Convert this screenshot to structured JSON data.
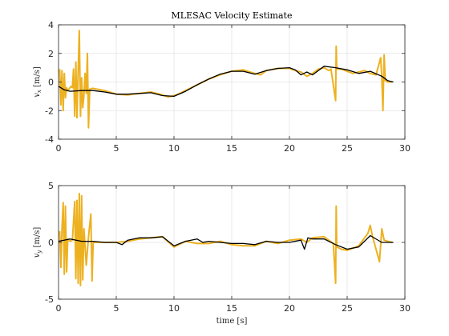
{
  "chart_data": [
    {
      "type": "line",
      "title": "MLESAC Velocity Estimate",
      "xlabel": "",
      "ylabel": "v_x [m/s]",
      "xlim": [
        0,
        30
      ],
      "ylim": [
        -4,
        4
      ],
      "xticks": [
        0,
        5,
        10,
        15,
        20,
        25,
        30
      ],
      "yticks": [
        -4,
        -2,
        0,
        2,
        4
      ],
      "grid": true,
      "series": [
        {
          "role": "measurement",
          "color": "#EDB120",
          "x": [
            0.1,
            0.2,
            0.3,
            0.4,
            0.5,
            0.6,
            0.7,
            0.8,
            0.9,
            1.0,
            1.1,
            1.2,
            1.3,
            1.4,
            1.5,
            1.6,
            1.7,
            1.8,
            1.9,
            2.0,
            2.1,
            2.2,
            2.3,
            2.4,
            2.5,
            2.6,
            2.7,
            2.8,
            2.9,
            3.0,
            4.0,
            5.0,
            6.0,
            7.0,
            8.0,
            9.0,
            9.5,
            10.0,
            10.5,
            11.0,
            12.0,
            13.0,
            14.0,
            15.0,
            16.0,
            17.0,
            17.5,
            18.0,
            19.0,
            20.0,
            20.5,
            21.0,
            21.5,
            22.0,
            22.5,
            23.0,
            23.4,
            23.6,
            24.0,
            24.05,
            24.1,
            24.5,
            25.0,
            25.5,
            26.0,
            26.5,
            27.0,
            27.5,
            27.9,
            28.0,
            28.1,
            28.2,
            28.3,
            28.5,
            28.9
          ],
          "y": [
            0.9,
            -1.6,
            0.8,
            -2.0,
            0.6,
            -1.1,
            -0.4,
            -0.6,
            -0.5,
            -0.4,
            -0.3,
            -0.4,
            0.9,
            -2.4,
            1.4,
            -2.5,
            0.8,
            3.6,
            -2.4,
            0.3,
            -1.8,
            -0.9,
            0.6,
            -0.8,
            2.0,
            -3.2,
            -0.5,
            -0.5,
            -0.45,
            -0.45,
            -0.6,
            -0.85,
            -0.9,
            -0.8,
            -0.7,
            -0.9,
            -1.05,
            -0.95,
            -0.8,
            -0.6,
            -0.2,
            0.2,
            0.5,
            0.75,
            0.85,
            0.6,
            0.5,
            0.8,
            0.95,
            0.95,
            0.8,
            0.7,
            0.4,
            0.6,
            0.9,
            1.0,
            0.8,
            0.9,
            -1.3,
            2.5,
            0.9,
            0.9,
            0.75,
            0.6,
            0.7,
            0.8,
            0.6,
            0.5,
            1.7,
            0.3,
            -2.0,
            1.9,
            0.1,
            0.0,
            0.0
          ]
        },
        {
          "role": "estimate",
          "color": "#000000",
          "x": [
            0,
            0.5,
            1,
            2,
            3,
            4,
            5,
            6,
            7,
            8,
            9,
            10,
            11,
            12,
            13,
            14,
            15,
            16,
            17,
            18,
            19,
            20,
            20.5,
            21,
            21.5,
            22,
            23,
            24,
            25,
            26,
            27,
            28,
            28.5,
            29
          ],
          "y": [
            -0.3,
            -0.55,
            -0.65,
            -0.6,
            -0.6,
            -0.7,
            -0.85,
            -0.85,
            -0.8,
            -0.75,
            -0.95,
            -1.0,
            -0.65,
            -0.2,
            0.2,
            0.55,
            0.75,
            0.75,
            0.55,
            0.8,
            0.95,
            1.0,
            0.85,
            0.5,
            0.7,
            0.5,
            1.1,
            1.0,
            0.85,
            0.6,
            0.75,
            0.4,
            0.1,
            0.0
          ]
        }
      ]
    },
    {
      "type": "line",
      "title": "",
      "xlabel": "time [s]",
      "ylabel": "v_y [m/s]",
      "xlim": [
        0,
        30
      ],
      "ylim": [
        -5,
        5
      ],
      "xticks": [
        0,
        5,
        10,
        15,
        20,
        25,
        30
      ],
      "yticks": [
        -5,
        0,
        5
      ],
      "grid": true,
      "series": [
        {
          "role": "measurement",
          "color": "#EDB120",
          "x": [
            0.1,
            0.2,
            0.3,
            0.4,
            0.5,
            0.6,
            0.7,
            0.8,
            1.0,
            1.2,
            1.4,
            1.5,
            1.6,
            1.7,
            1.8,
            1.9,
            2.0,
            2.1,
            2.2,
            2.4,
            2.6,
            2.8,
            2.9,
            3.0,
            4.0,
            5.0,
            6.0,
            7.0,
            8.0,
            9.0,
            10.0,
            11.0,
            12.0,
            13.0,
            14.0,
            15.0,
            16.0,
            17.0,
            18.0,
            19.0,
            20.0,
            21.0,
            21.5,
            22.0,
            23.0,
            23.8,
            24.0,
            24.05,
            24.1,
            24.5,
            25.0,
            26.0,
            26.8,
            27.0,
            27.2,
            27.8,
            28.0,
            28.2,
            28.5,
            28.9
          ],
          "y": [
            1.0,
            -2.2,
            1.2,
            3.5,
            -2.8,
            3.2,
            -2.6,
            0.3,
            0.1,
            0.2,
            3.6,
            -3.2,
            3.7,
            -3.6,
            4.3,
            -3.8,
            4.1,
            -3.3,
            1.2,
            -2.0,
            0.5,
            2.5,
            -3.4,
            0.0,
            0.0,
            0.0,
            0.1,
            0.3,
            0.4,
            0.5,
            -0.4,
            0.1,
            -0.1,
            -0.1,
            0.1,
            -0.2,
            -0.3,
            -0.3,
            0.1,
            -0.1,
            0.2,
            0.3,
            0.0,
            0.4,
            0.5,
            -0.1,
            -3.6,
            3.2,
            -0.4,
            -0.6,
            -0.7,
            -0.3,
            0.8,
            1.5,
            0.5,
            -1.7,
            1.2,
            0.2,
            0.1,
            0.0
          ]
        },
        {
          "role": "estimate",
          "color": "#000000",
          "x": [
            0,
            1,
            2,
            3,
            4,
            5,
            5.5,
            6,
            7,
            8,
            9,
            10,
            11,
            12,
            12.5,
            13,
            14,
            15,
            16,
            17,
            18,
            19,
            20,
            21,
            21.3,
            21.6,
            22,
            23,
            24,
            25,
            26,
            27,
            28,
            29
          ],
          "y": [
            0.1,
            0.3,
            0.1,
            0.1,
            0.0,
            0.0,
            -0.2,
            0.2,
            0.4,
            0.4,
            0.5,
            -0.3,
            0.1,
            0.3,
            0.0,
            0.1,
            0.0,
            -0.1,
            -0.1,
            -0.2,
            0.1,
            0.0,
            0.0,
            0.2,
            -0.6,
            0.4,
            0.3,
            0.3,
            -0.2,
            -0.6,
            -0.4,
            0.6,
            0.0,
            0.0
          ]
        }
      ]
    }
  ]
}
